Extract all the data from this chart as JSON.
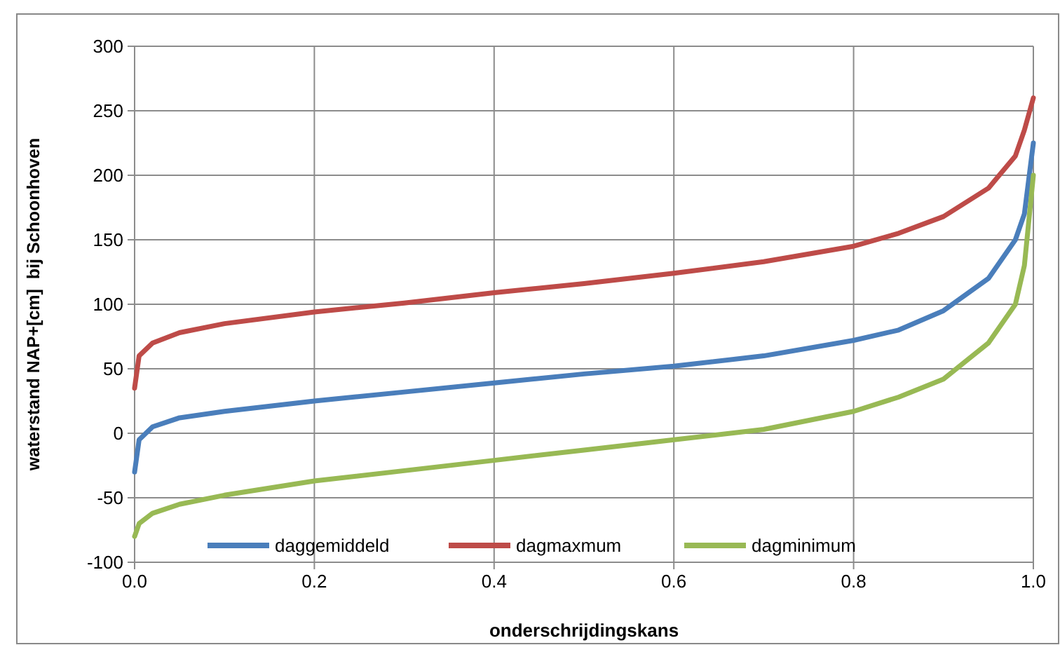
{
  "chart_data": {
    "type": "line",
    "xlabel": "onderschrijdingskans",
    "ylabel": "waterstand NAP+[cm]  bij Schoonhoven",
    "x": [
      0,
      0.005,
      0.02,
      0.05,
      0.1,
      0.2,
      0.3,
      0.4,
      0.5,
      0.6,
      0.7,
      0.8,
      0.85,
      0.9,
      0.95,
      0.98,
      0.99,
      1.0
    ],
    "series": [
      {
        "name": "daggemiddeld",
        "color": "#4a7ebb",
        "values": [
          -30,
          -5,
          5,
          12,
          17,
          25,
          32,
          39,
          46,
          52,
          60,
          72,
          80,
          95,
          120,
          150,
          170,
          225
        ]
      },
      {
        "name": "dagmaxmum",
        "color": "#be4b48",
        "values": [
          35,
          60,
          70,
          78,
          85,
          94,
          101,
          109,
          116,
          124,
          133,
          145,
          155,
          168,
          190,
          215,
          235,
          260
        ]
      },
      {
        "name": "dagminimum",
        "color": "#98b954",
        "values": [
          -80,
          -70,
          -62,
          -55,
          -48,
          -37,
          -29,
          -21,
          -13,
          -5,
          3,
          17,
          28,
          42,
          70,
          100,
          130,
          200
        ]
      }
    ],
    "xlim": [
      0,
      1
    ],
    "xticks": [
      {
        "value": 0,
        "label": "0.0"
      },
      {
        "value": 0.2,
        "label": "0.2"
      },
      {
        "value": 0.4,
        "label": "0.4"
      },
      {
        "value": 0.6,
        "label": "0.6"
      },
      {
        "value": 0.8,
        "label": "0.8"
      },
      {
        "value": 1,
        "label": "1.0"
      }
    ],
    "ylim": [
      -100,
      300
    ],
    "yticks": [
      -100,
      -50,
      0,
      50,
      100,
      150,
      200,
      250,
      300
    ],
    "grid": true,
    "legend": "bottom",
    "marker": "none",
    "line_style": "solid"
  }
}
